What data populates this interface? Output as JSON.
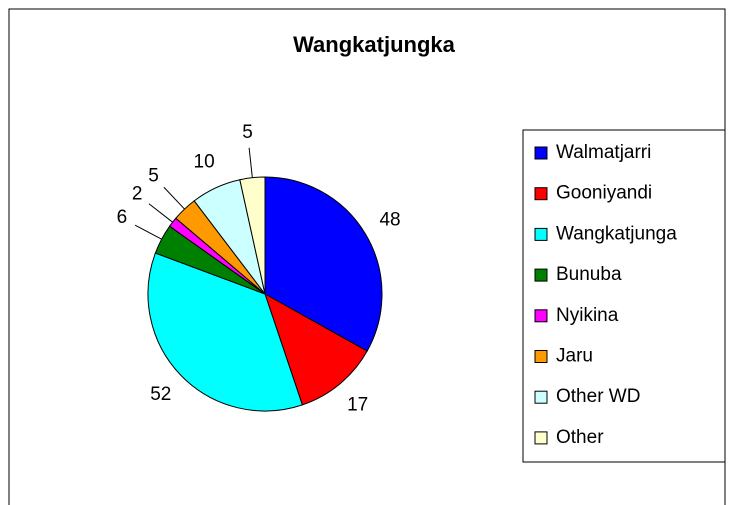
{
  "chart_data": {
    "type": "pie",
    "title": "Wangkatjungka",
    "categories": [
      "Walmatjarri",
      "Gooniyandi",
      "Wangkatjunga",
      "Bunuba",
      "Nyikina",
      "Jaru",
      "Other WD",
      "Other"
    ],
    "values": [
      48,
      17,
      52,
      6,
      2,
      5,
      10,
      5
    ],
    "colors": [
      "#0000ff",
      "#ff0000",
      "#00ffff",
      "#008000",
      "#ff00ff",
      "#ff9900",
      "#ccffff",
      "#ffffcc"
    ],
    "legend": "right"
  }
}
